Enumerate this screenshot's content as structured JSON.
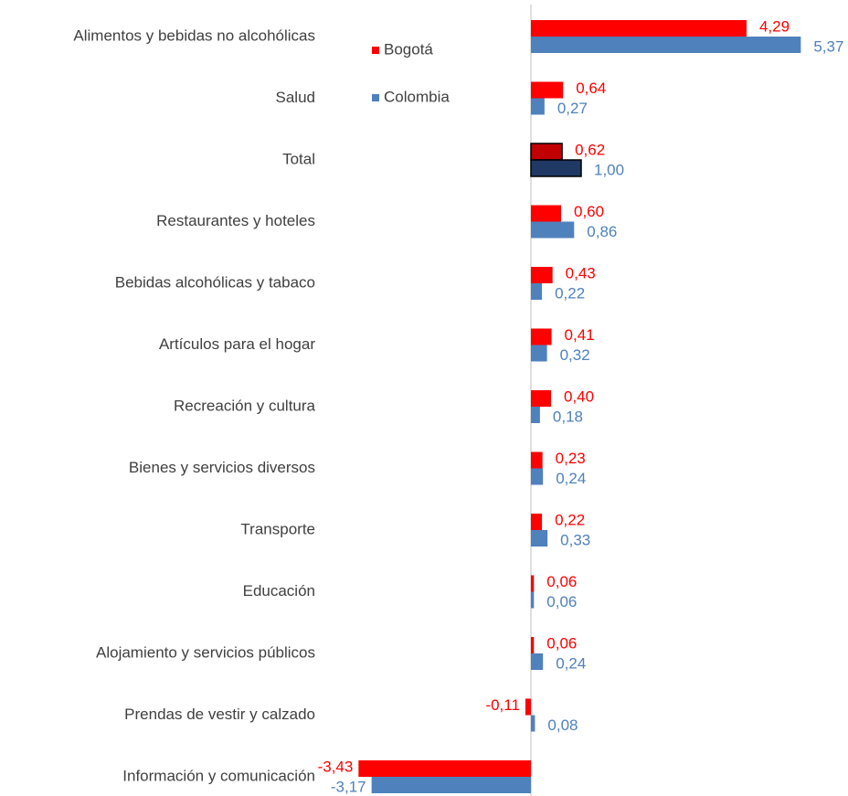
{
  "chart_data": {
    "type": "hbar",
    "categories": [
      "Alimentos y bebidas no alcohólicas",
      "Salud",
      "Total",
      "Restaurantes y hoteles",
      "Bebidas alcohólicas y tabaco",
      "Artículos para el hogar",
      "Recreación y cultura",
      "Bienes y servicios diversos",
      "Transporte",
      "Educación",
      "Alojamiento y servicios públicos",
      "Prendas de vestir y calzado",
      "Información y comunicación"
    ],
    "series": [
      {
        "name": "Bogotá",
        "color": "#ff0000",
        "colors": [
          "#ff0000",
          "#ff0000",
          "#c00000",
          "#ff0000",
          "#ff0000",
          "#ff0000",
          "#ff0000",
          "#ff0000",
          "#ff0000",
          "#ff0000",
          "#ff0000",
          "#ff0000",
          "#ff0000"
        ],
        "values": [
          4.29,
          0.64,
          0.62,
          0.6,
          0.43,
          0.41,
          0.4,
          0.23,
          0.22,
          0.06,
          0.06,
          -0.11,
          -3.43
        ],
        "value_labels": [
          "4,29",
          "0,64",
          "0,62",
          "0,60",
          "0,43",
          "0,41",
          "0,40",
          "0,23",
          "0,22",
          "0,06",
          "0,06",
          "-0,11",
          "-3,43"
        ]
      },
      {
        "name": "Colombia",
        "color": "#4f81bd",
        "colors": [
          "#4f81bd",
          "#4f81bd",
          "#1f3864",
          "#4f81bd",
          "#4f81bd",
          "#4f81bd",
          "#4f81bd",
          "#4f81bd",
          "#4f81bd",
          "#4f81bd",
          "#4f81bd",
          "#4f81bd",
          "#4f81bd"
        ],
        "values": [
          5.37,
          0.27,
          1.0,
          0.86,
          0.22,
          0.32,
          0.18,
          0.24,
          0.33,
          0.06,
          0.24,
          0.08,
          -3.17
        ],
        "value_labels": [
          "5,37",
          "0,27",
          "1,00",
          "0,86",
          "0,22",
          "0,32",
          "0,18",
          "0,24",
          "0,33",
          "0,06",
          "0,24",
          "0,08",
          "-3,17"
        ]
      }
    ],
    "xlim": [
      -3.5,
      6
    ]
  }
}
